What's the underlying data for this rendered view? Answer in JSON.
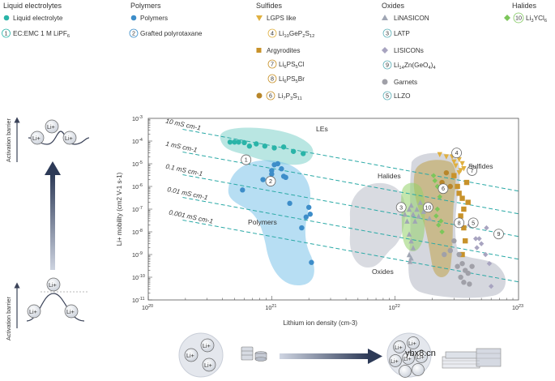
{
  "legend": {
    "liquid": {
      "heading": "Liquid electrolytes",
      "items": [
        {
          "marker": "circle",
          "color": "#2ab4a8",
          "label": "Liquid electrolyte"
        },
        {
          "num": "1",
          "label": "EC:EMC 1 M LiPF6",
          "num_color": "#2ab4a8"
        }
      ]
    },
    "polymers": {
      "heading": "Polymers",
      "items": [
        {
          "marker": "circle",
          "color": "#3d8dc9",
          "label": "Polymers"
        },
        {
          "num": "2",
          "label": "Grafted polyrotaxane",
          "num_color": "#3d8dc9"
        }
      ]
    },
    "sulfides": {
      "heading": "Sulfides",
      "items": [
        {
          "marker": "triangle-down",
          "color": "#e0b040",
          "label": "LGPS like"
        },
        {
          "num": "4",
          "label": "Li10GeP2S12",
          "num_color": "#e0b040"
        },
        {
          "marker": "square",
          "color": "#c8922a",
          "label": "Argyrodites"
        },
        {
          "num": "7",
          "label": "Li6PS5Cl",
          "num_color": "#c8922a"
        },
        {
          "num": "8",
          "label": "Li6PS5Br",
          "num_color": "#c8922a"
        },
        {
          "marker": "circle",
          "color": "#b8862a",
          "num": "6",
          "label": "Li7P3S11",
          "num_color": "#c8922a"
        }
      ]
    },
    "oxides": {
      "heading": "Oxides",
      "items": [
        {
          "marker": "triangle-up",
          "color": "#a0a6b4",
          "label": "LiNASICON"
        },
        {
          "num": "3",
          "label": "LATP",
          "num_color": "#5fb0b8"
        },
        {
          "marker": "diamond",
          "color": "#a8a4c0",
          "label": "LISICONs"
        },
        {
          "num": "9",
          "label": "Li14Zn(GeO4)4",
          "num_color": "#5fb0b8"
        },
        {
          "marker": "circle",
          "color": "#a0a0a8",
          "label": "Garnets"
        },
        {
          "num": "5",
          "label": "LLZO",
          "num_color": "#5fb0b8"
        }
      ]
    },
    "halides": {
      "heading": "Halides",
      "items": [
        {
          "marker": "diamond",
          "color": "#7cc65a",
          "num": "10",
          "label": "Li3YCl6",
          "num_color": "#7cc65a"
        }
      ]
    }
  },
  "left_panel": {
    "label_top": "Activation barrier",
    "label_bottom": "Activation barrier",
    "ion_label": "Li+"
  },
  "chart_data": {
    "type": "scatter",
    "title": "",
    "xlabel": "Lithium ion density (cm-3)",
    "ylabel": "Li+ mobility (cm2 V-1 s-1)",
    "xscale": "log",
    "yscale": "log",
    "xlim": [
      1e+20,
      1e+23
    ],
    "ylim": [
      1e-11,
      0.001
    ],
    "xticks": [
      "10^20",
      "10^21",
      "10^22",
      "10^23"
    ],
    "yticks": [
      "10^-3",
      "10^-4",
      "10^-5",
      "10^-6",
      "10^-7",
      "10^-8",
      "10^-9",
      "10^-10",
      "10^-11"
    ],
    "conductivity_lines": [
      {
        "label": "10 mS cm-1",
        "sigma_S_per_cm": 0.01
      },
      {
        "label": "1 mS cm-1",
        "sigma_S_per_cm": 0.001
      },
      {
        "label": "0.1 mS cm-1",
        "sigma_S_per_cm": 0.0001
      },
      {
        "label": "0.01 mS cm-1",
        "sigma_S_per_cm": 1e-05
      },
      {
        "label": "0.001 mS cm-1",
        "sigma_S_per_cm": 1e-06
      }
    ],
    "region_labels": [
      "LEs",
      "Polymers",
      "Halides",
      "Sulfides",
      "Oxides"
    ],
    "series": [
      {
        "name": "Liquid electrolyte",
        "marker": "circle",
        "color": "#2ab4a8",
        "points": [
          [
            4.6e+20,
            9e-05
          ],
          [
            5e+20,
            9e-05
          ],
          [
            5.4e+20,
            9e-05
          ],
          [
            6e+20,
            8.5e-05
          ],
          [
            6.6e+20,
            6e-05
          ],
          [
            7.5e+20,
            7.5e-05
          ],
          [
            8.8e+20,
            6e-05
          ],
          [
            1.05e+21,
            5e-05
          ],
          [
            1.25e+21,
            5.5e-05
          ],
          [
            1.5e+21,
            3.5e-05
          ],
          [
            1.8e+21,
            2.8e-05
          ]
        ]
      },
      {
        "name": "Polymers",
        "marker": "circle",
        "color": "#3d8dc9",
        "points": [
          [
            5.8e+20,
            7e-07
          ],
          [
            8.5e+20,
            2e-06
          ],
          [
            1e+21,
            5e-06
          ],
          [
            1e+21,
            3.5e-06
          ],
          [
            1.05e+21,
            9e-06
          ],
          [
            1.12e+21,
            1e-05
          ],
          [
            1.2e+21,
            6e-06
          ],
          [
            1.25e+21,
            2.8e-06
          ],
          [
            1.3e+21,
            2.5e-06
          ],
          [
            1.4e+21,
            1.8e-07
          ],
          [
            1.75e+21,
            1.5e-08
          ],
          [
            1.9e+21,
            4.5e-08
          ],
          [
            2e+21,
            1.2e-07
          ],
          [
            2.05e+21,
            6e-08
          ],
          [
            2.1e+21,
            4.5e-10
          ]
        ]
      },
      {
        "name": "LGPS like",
        "marker": "triangle-down",
        "color": "#e0b040",
        "points": [
          [
            2.3e+22,
            2.5e-05
          ],
          [
            2.6e+22,
            2e-05
          ],
          [
            2.9e+22,
            2e-05
          ],
          [
            3e+22,
            1.2e-05
          ],
          [
            3.1e+22,
            8e-06
          ],
          [
            3.3e+22,
            1.5e-05
          ],
          [
            3.4e+22,
            5e-06
          ],
          [
            3.5e+22,
            1e-05
          ],
          [
            3.6e+22,
            6e-06
          ],
          [
            3.3e+22,
            4e-06
          ]
        ]
      },
      {
        "name": "Argyrodites",
        "marker": "square",
        "color": "#c8922a",
        "points": [
          [
            3e+22,
            3e-06
          ],
          [
            3.2e+22,
            1e-06
          ],
          [
            3.3e+22,
            5e-07
          ],
          [
            3.5e+22,
            3e-07
          ],
          [
            3.6e+22,
            1e-07
          ],
          [
            3.4e+22,
            5e-08
          ],
          [
            3.6e+22,
            1.5e-08
          ],
          [
            3.7e+22,
            4e-09
          ],
          [
            3.5e+22,
            1e-09
          ],
          [
            3.8e+22,
            1.5e-06
          ],
          [
            3.9e+22,
            2e-07
          ]
        ]
      },
      {
        "name": "Li7P3S11",
        "marker": "circle",
        "color": "#b8862a",
        "points": [
          [
            2.6e+22,
            4e-06
          ],
          [
            2.4e+22,
            1.5e-06
          ],
          [
            2.8e+22,
            1e-06
          ]
        ]
      },
      {
        "name": "LiNASICON",
        "marker": "triangle-up",
        "color": "#a0a6b4",
        "points": [
          [
            1.15e+22,
            1e-07
          ],
          [
            1.2e+22,
            6e-08
          ],
          [
            1.25e+22,
            3e-08
          ],
          [
            1.3e+22,
            1e-07
          ],
          [
            1.35e+22,
            1.5e-07
          ],
          [
            1.4e+22,
            6e-08
          ],
          [
            1.45e+22,
            3e-08
          ],
          [
            1.5e+22,
            1e-07
          ],
          [
            1.55e+22,
            5e-08
          ],
          [
            1.6e+22,
            2e-07
          ],
          [
            1.7e+22,
            8e-08
          ],
          [
            1.9e+22,
            4e-08
          ],
          [
            1.3e+22,
            8e-09
          ],
          [
            1.35e+22,
            4e-09
          ],
          [
            1.4e+22,
            2e-09
          ],
          [
            1.3e+22,
            1e-09
          ],
          [
            1.35e+22,
            7e-10
          ],
          [
            1.32e+22,
            5e-10
          ]
        ]
      },
      {
        "name": "LISICONs",
        "marker": "diamond",
        "color": "#a8a4c0",
        "points": [
          [
            4e+22,
            2e-08
          ],
          [
            4.5e+22,
            5e-09
          ],
          [
            4.6e+22,
            2e-09
          ],
          [
            4.8e+22,
            5e-09
          ],
          [
            5e+22,
            3e-09
          ],
          [
            5.4e+22,
            1e-09
          ],
          [
            5.8e+22,
            4e-10
          ],
          [
            6e+22,
            4e-11
          ],
          [
            5.5e+22,
            1.5e-08
          ]
        ]
      },
      {
        "name": "Garnets",
        "marker": "circle",
        "color": "#a0a0a8",
        "points": [
          [
            3e+22,
            4e-09
          ],
          [
            3.3e+22,
            1e-09
          ],
          [
            3.5e+22,
            4e-10
          ],
          [
            3.7e+22,
            2e-10
          ],
          [
            3.4e+22,
            1e-10
          ],
          [
            3.6e+22,
            6e-11
          ],
          [
            4e+22,
            5e-11
          ],
          [
            3.9e+22,
            1.5e-10
          ],
          [
            4.2e+22,
            3e-10
          ],
          [
            2.5e+22,
            1e-09
          ],
          [
            2.8e+22,
            1.5e-09
          ],
          [
            3.2e+22,
            3e-10
          ]
        ]
      },
      {
        "name": "Li3YCl6",
        "marker": "diamond",
        "color": "#7cc65a",
        "points": [
          [
            2.05e+22,
            3e-06
          ],
          [
            2.1e+22,
            1.8e-06
          ],
          [
            2.2e+22,
            1e-06
          ],
          [
            2.3e+22,
            3.5e-07
          ],
          [
            2.2e+22,
            1e-07
          ],
          [
            2.35e+22,
            3e-08
          ],
          [
            2.25e+22,
            2e-08
          ],
          [
            2.4e+22,
            1e-08
          ],
          [
            2.15e+22,
            5e-08
          ]
        ]
      }
    ],
    "numbered_callouts": [
      {
        "num": "1",
        "x": 6.2e+20,
        "y": 1.5e-05
      },
      {
        "num": "2",
        "x": 9.8e+20,
        "y": 1.7e-06
      },
      {
        "num": "3",
        "x": 1.12e+22,
        "y": 1.2e-07
      },
      {
        "num": "4",
        "x": 3.15e+22,
        "y": 3e-05
      },
      {
        "num": "5",
        "x": 4.3e+22,
        "y": 2.5e-08
      },
      {
        "num": "6",
        "x": 2.45e+22,
        "y": 8e-07
      },
      {
        "num": "7",
        "x": 4.2e+22,
        "y": 5e-06
      },
      {
        "num": "8",
        "x": 3.3e+22,
        "y": 2.5e-08
      },
      {
        "num": "9",
        "x": 6.9e+22,
        "y": 8e-09
      },
      {
        "num": "10",
        "x": 1.85e+22,
        "y": 1.2e-07
      }
    ]
  },
  "bottom_diagram": {
    "ion_label": "Li+"
  },
  "watermark": "ybx8.cn"
}
